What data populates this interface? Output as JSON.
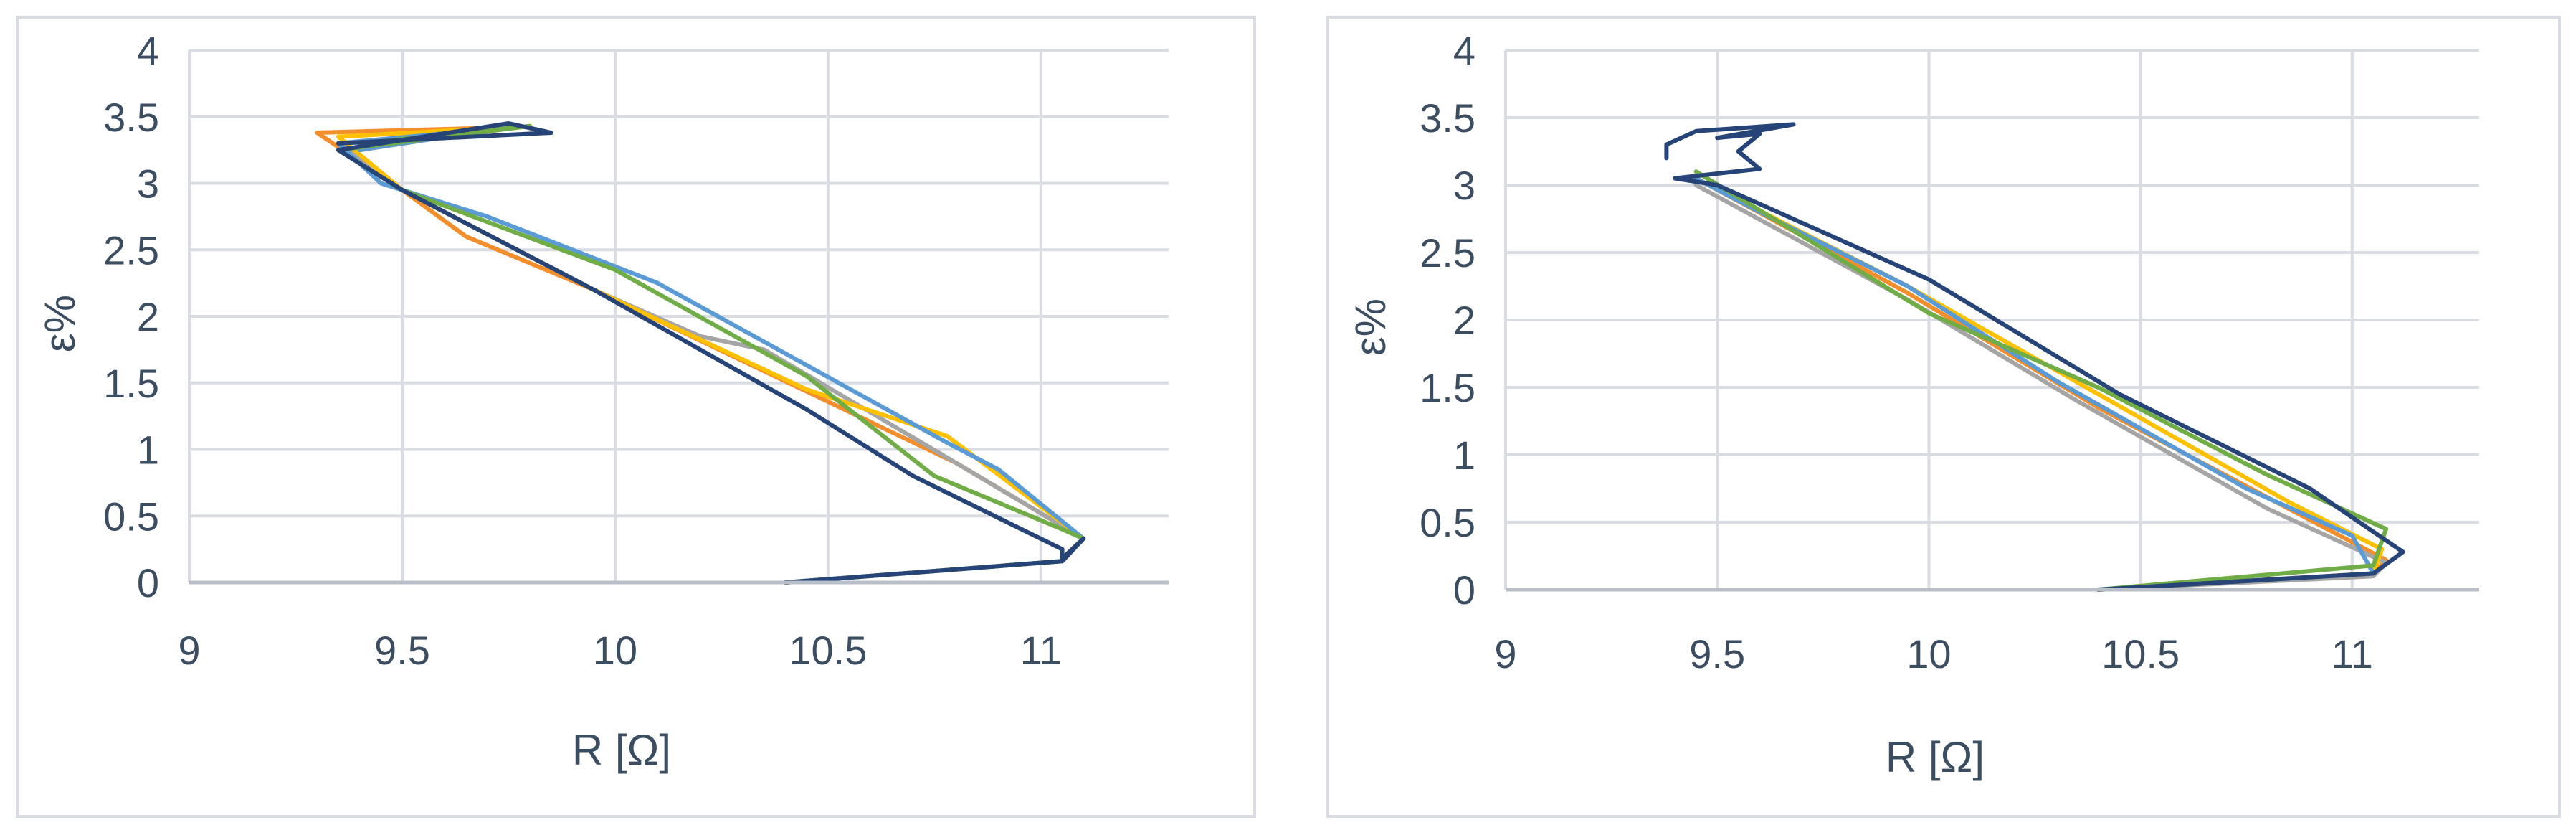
{
  "chart_data": [
    {
      "type": "line",
      "xlabel": "R [Ω]",
      "ylabel": "ε%",
      "xlim": [
        9,
        11.3
      ],
      "ylim": [
        0,
        4
      ],
      "x_ticks": [
        "9",
        "9.5",
        "10",
        "10.5",
        "11"
      ],
      "y_ticks": [
        "0",
        "0.5",
        "1",
        "1.5",
        "2",
        "2.5",
        "3",
        "3.5",
        "4"
      ],
      "grid": true,
      "legend": "none",
      "series": [
        {
          "color": "#f28e2b",
          "points": [
            [
              10.4,
              0
            ],
            [
              11.05,
              0.16
            ],
            [
              11.1,
              0.33
            ],
            [
              10.8,
              0.9
            ],
            [
              9.95,
              2.2
            ],
            [
              9.65,
              2.6
            ],
            [
              9.5,
              2.95
            ],
            [
              9.3,
              3.38
            ],
            [
              9.75,
              3.42
            ],
            [
              9.4,
              3.25
            ]
          ]
        },
        {
          "color": "#a5a5a5",
          "points": [
            [
              10.4,
              0
            ],
            [
              11.05,
              0.16
            ],
            [
              11.1,
              0.33
            ],
            [
              10.8,
              0.9
            ],
            [
              10.35,
              1.75
            ],
            [
              10.2,
              1.85
            ],
            [
              9.95,
              2.2
            ],
            [
              9.5,
              2.95
            ],
            [
              9.35,
              3.3
            ],
            [
              9.75,
              3.42
            ],
            [
              9.4,
              3.25
            ]
          ]
        },
        {
          "color": "#ffc000",
          "points": [
            [
              10.4,
              0
            ],
            [
              11.05,
              0.16
            ],
            [
              11.1,
              0.33
            ],
            [
              10.78,
              1.1
            ],
            [
              10.45,
              1.45
            ],
            [
              9.95,
              2.2
            ],
            [
              9.5,
              2.95
            ],
            [
              9.35,
              3.35
            ],
            [
              9.75,
              3.42
            ],
            [
              9.4,
              3.25
            ]
          ]
        },
        {
          "color": "#5b9bd5",
          "points": [
            [
              10.4,
              0
            ],
            [
              11.05,
              0.16
            ],
            [
              11.1,
              0.33
            ],
            [
              10.9,
              0.85
            ],
            [
              10.78,
              1.05
            ],
            [
              10.1,
              2.25
            ],
            [
              9.7,
              2.75
            ],
            [
              9.45,
              3.0
            ],
            [
              9.35,
              3.3
            ],
            [
              9.75,
              3.42
            ],
            [
              9.4,
              3.25
            ]
          ]
        },
        {
          "color": "#70ad47",
          "points": [
            [
              10.4,
              0
            ],
            [
              11.05,
              0.16
            ],
            [
              11.1,
              0.33
            ],
            [
              11.05,
              0.4
            ],
            [
              10.75,
              0.8
            ],
            [
              10.45,
              1.55
            ],
            [
              10.0,
              2.35
            ],
            [
              9.5,
              2.95
            ],
            [
              9.35,
              3.25
            ],
            [
              9.8,
              3.43
            ],
            [
              9.4,
              3.3
            ]
          ]
        },
        {
          "color": "#264478",
          "points": [
            [
              10.4,
              0
            ],
            [
              11.05,
              0.16
            ],
            [
              11.1,
              0.33
            ],
            [
              11.05,
              0.18
            ],
            [
              11.05,
              0.25
            ],
            [
              10.7,
              0.8
            ],
            [
              10.45,
              1.3
            ],
            [
              9.95,
              2.2
            ],
            [
              9.5,
              2.95
            ],
            [
              9.35,
              3.25
            ],
            [
              9.75,
              3.45
            ],
            [
              9.85,
              3.38
            ],
            [
              9.35,
              3.3
            ]
          ]
        }
      ]
    },
    {
      "type": "line",
      "xlabel": "R [Ω]",
      "ylabel": "ε%",
      "xlim": [
        9,
        11.3
      ],
      "ylim": [
        0,
        4
      ],
      "x_ticks": [
        "9",
        "9.5",
        "10",
        "10.5",
        "11"
      ],
      "y_ticks": [
        "0",
        "0.5",
        "1",
        "1.5",
        "2",
        "2.5",
        "3",
        "3.5",
        "4"
      ],
      "grid": true,
      "legend": "none",
      "series": [
        {
          "color": "#f28e2b",
          "points": [
            [
              10.4,
              0
            ],
            [
              11.05,
              0.12
            ],
            [
              11.08,
              0.22
            ],
            [
              10.85,
              0.6
            ],
            [
              10.4,
              1.35
            ],
            [
              9.95,
              2.2
            ],
            [
              9.45,
              3.05
            ]
          ]
        },
        {
          "color": "#a5a5a5",
          "points": [
            [
              10.4,
              0
            ],
            [
              11.05,
              0.1
            ],
            [
              11.08,
              0.2
            ],
            [
              10.8,
              0.6
            ],
            [
              10.35,
              1.4
            ],
            [
              9.95,
              2.15
            ],
            [
              9.45,
              3.0
            ]
          ]
        },
        {
          "color": "#ffc000",
          "points": [
            [
              10.4,
              0
            ],
            [
              11.05,
              0.12
            ],
            [
              11.07,
              0.3
            ],
            [
              10.85,
              0.65
            ],
            [
              10.4,
              1.45
            ],
            [
              9.95,
              2.25
            ],
            [
              9.45,
              3.05
            ]
          ]
        },
        {
          "color": "#5b9bd5",
          "points": [
            [
              10.4,
              0
            ],
            [
              11.05,
              0.12
            ],
            [
              11.0,
              0.4
            ],
            [
              10.75,
              0.75
            ],
            [
              10.3,
              1.55
            ],
            [
              9.95,
              2.25
            ],
            [
              9.6,
              2.8
            ],
            [
              9.45,
              3.05
            ]
          ]
        },
        {
          "color": "#70ad47",
          "points": [
            [
              10.4,
              0
            ],
            [
              11.05,
              0.18
            ],
            [
              11.08,
              0.45
            ],
            [
              10.8,
              0.85
            ],
            [
              10.4,
              1.5
            ],
            [
              10.0,
              2.05
            ],
            [
              9.45,
              3.1
            ]
          ]
        },
        {
          "color": "#264478",
          "points": [
            [
              10.4,
              0
            ],
            [
              11.05,
              0.12
            ],
            [
              11.12,
              0.28
            ],
            [
              10.9,
              0.75
            ],
            [
              10.45,
              1.45
            ],
            [
              10.0,
              2.3
            ],
            [
              9.5,
              3.0
            ],
            [
              9.4,
              3.05
            ],
            [
              9.6,
              3.12
            ],
            [
              9.55,
              3.25
            ],
            [
              9.6,
              3.38
            ],
            [
              9.5,
              3.35
            ],
            [
              9.68,
              3.45
            ],
            [
              9.45,
              3.4
            ],
            [
              9.38,
              3.3
            ],
            [
              9.38,
              3.2
            ]
          ]
        }
      ]
    }
  ]
}
